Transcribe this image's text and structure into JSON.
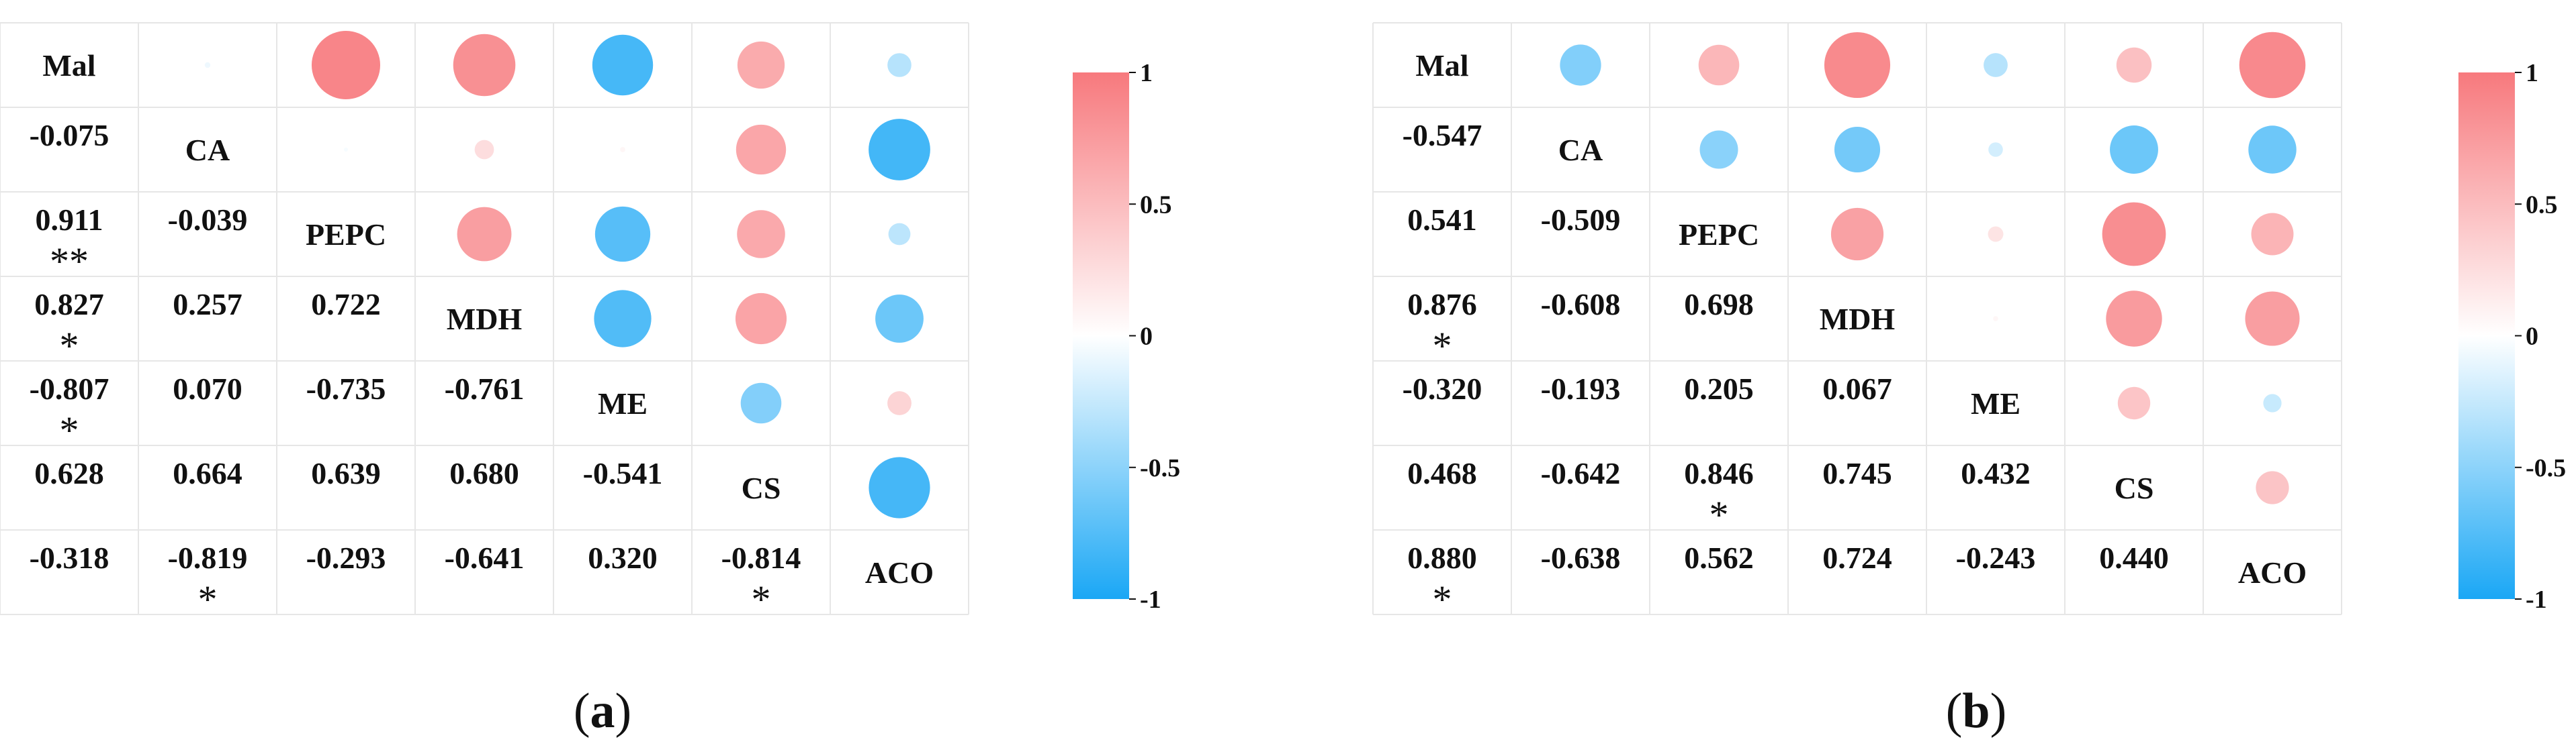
{
  "chart_data": [
    {
      "type": "heatmap",
      "panel": "a",
      "variables": [
        "Mal",
        "CA",
        "PEPC",
        "MDH",
        "ME",
        "CS",
        "ACO"
      ],
      "matrix": [
        [
          1,
          -0.075,
          0.911,
          0.827,
          -0.807,
          0.628,
          -0.318
        ],
        [
          -0.075,
          1,
          -0.039,
          0.257,
          0.07,
          0.664,
          -0.819
        ],
        [
          0.911,
          -0.039,
          1,
          0.722,
          -0.735,
          0.639,
          -0.293
        ],
        [
          0.827,
          0.257,
          0.722,
          1,
          -0.761,
          0.68,
          -0.641
        ],
        [
          -0.807,
          0.07,
          -0.735,
          -0.761,
          1,
          -0.541,
          0.32
        ],
        [
          0.628,
          0.664,
          0.639,
          0.68,
          -0.541,
          1,
          -0.814
        ],
        [
          -0.318,
          -0.819,
          -0.293,
          -0.641,
          0.32,
          -0.814,
          1
        ]
      ],
      "lower_labels": [
        [
          "-0.075"
        ],
        [
          "0.911",
          "-0.039"
        ],
        [
          "0.827",
          "0.257",
          "0.722"
        ],
        [
          "-0.807",
          "0.070",
          "-0.735",
          "-0.761"
        ],
        [
          "0.628",
          "0.664",
          "0.639",
          "0.680",
          "-0.541"
        ],
        [
          "-0.318",
          "-0.819",
          "-0.293",
          "-0.641",
          "0.320",
          "-0.814"
        ]
      ],
      "significance": [
        [
          ""
        ],
        [
          "**",
          ""
        ],
        [
          "*",
          "",
          ""
        ],
        [
          "*",
          "",
          "",
          ""
        ],
        [
          "",
          "",
          "",
          "",
          ""
        ],
        [
          "",
          "*",
          "",
          "",
          "",
          "*"
        ]
      ],
      "upper_display": "circles",
      "colorbar": {
        "range": [
          -1,
          1
        ],
        "ticks": [
          "1",
          "0.5",
          "0",
          "-0.5",
          "-1"
        ],
        "colors": {
          "negative": "#1aa7f5",
          "neutral": "#ffffff",
          "positive": "#f7797d"
        }
      },
      "caption": {
        "open": "(",
        "letter": "a",
        "close": ")"
      }
    },
    {
      "type": "heatmap",
      "panel": "b",
      "variables": [
        "Mal",
        "CA",
        "PEPC",
        "MDH",
        "ME",
        "CS",
        "ACO"
      ],
      "matrix": [
        [
          1,
          -0.547,
          0.541,
          0.876,
          -0.32,
          0.468,
          0.88
        ],
        [
          -0.547,
          1,
          -0.509,
          -0.608,
          -0.193,
          -0.642,
          -0.638
        ],
        [
          0.541,
          -0.509,
          1,
          0.698,
          0.205,
          0.846,
          0.562
        ],
        [
          0.876,
          -0.608,
          0.698,
          1,
          0.067,
          0.745,
          0.724
        ],
        [
          -0.32,
          -0.193,
          0.205,
          0.067,
          1,
          0.432,
          -0.243
        ],
        [
          0.468,
          -0.642,
          0.846,
          0.745,
          0.432,
          1,
          0.44
        ],
        [
          0.88,
          -0.638,
          0.562,
          0.724,
          -0.243,
          0.44,
          1
        ]
      ],
      "lower_labels": [
        [
          "-0.547"
        ],
        [
          "0.541",
          "-0.509"
        ],
        [
          "0.876",
          "-0.608",
          "0.698"
        ],
        [
          "-0.320",
          "-0.193",
          "0.205",
          "0.067"
        ],
        [
          "0.468",
          "-0.642",
          "0.846",
          "0.745",
          "0.432"
        ],
        [
          "0.880",
          "-0.638",
          "0.562",
          "0.724",
          "-0.243",
          "0.440"
        ]
      ],
      "significance": [
        [
          ""
        ],
        [
          "",
          ""
        ],
        [
          "*",
          "",
          ""
        ],
        [
          "",
          "",
          "",
          ""
        ],
        [
          "",
          "",
          "*",
          "",
          ""
        ],
        [
          "*",
          "",
          "",
          "",
          "",
          ""
        ]
      ],
      "upper_display": "circles",
      "colorbar": {
        "range": [
          -1,
          1
        ],
        "ticks": [
          "1",
          "0.5",
          "0",
          "-0.5",
          "-1"
        ],
        "colors": {
          "negative": "#1aa7f5",
          "neutral": "#ffffff",
          "positive": "#f7797d"
        }
      },
      "caption": {
        "open": "(",
        "letter": "b",
        "close": ")"
      }
    }
  ]
}
